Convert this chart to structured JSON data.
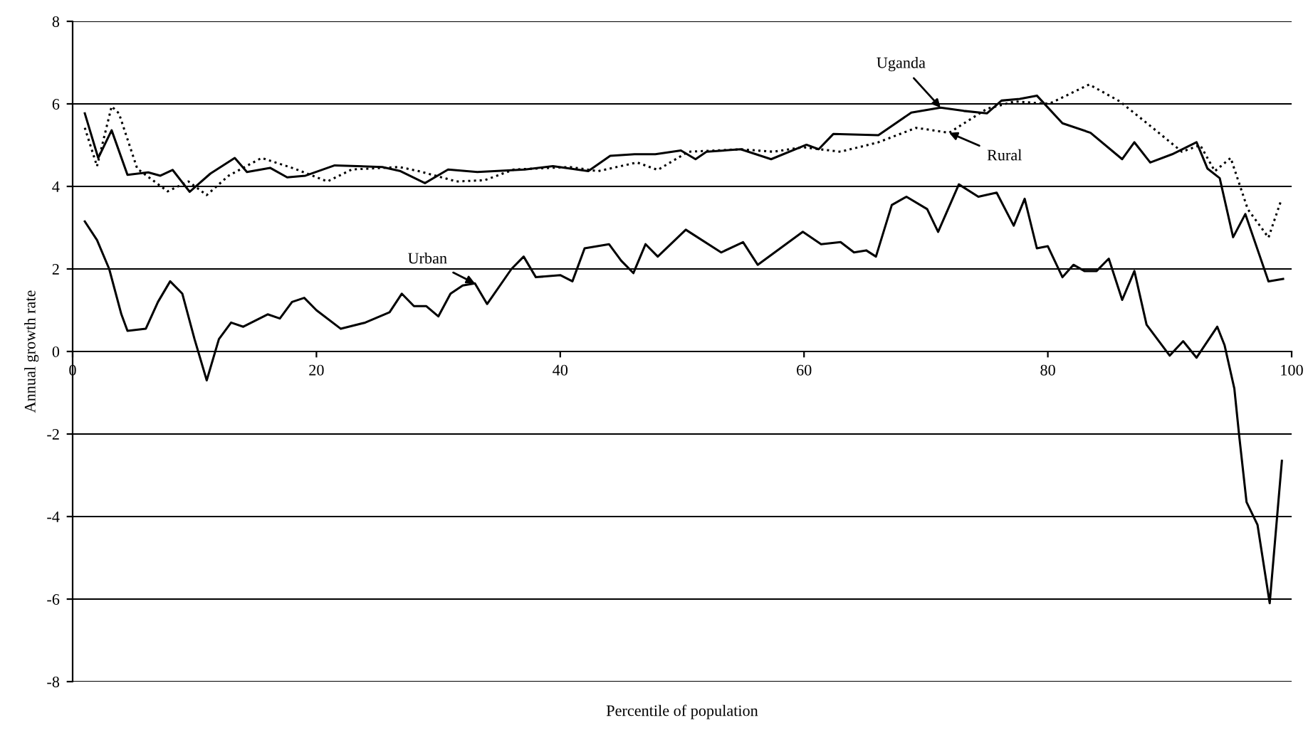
{
  "chart_data": {
    "type": "line",
    "xlabel": "Percentile of population",
    "ylabel": "Annual growth rate",
    "xlim": [
      0,
      100
    ],
    "ylim": [
      -8,
      8
    ],
    "xticks": [
      0,
      20,
      40,
      60,
      80,
      100
    ],
    "yticks": [
      -8,
      -6,
      -4,
      -2,
      0,
      2,
      4,
      6,
      8
    ],
    "grid": "y",
    "legend": false,
    "series": [
      {
        "name": "Uganda",
        "color": "#000000",
        "line_style": "solid",
        "x": [
          1,
          2.1,
          3.2,
          4.5,
          6.2,
          7.2,
          8.2,
          9.6,
          11.3,
          13.3,
          14.3,
          16.2,
          17.6,
          19.1,
          21.5,
          25.4,
          26.9,
          28.9,
          30.8,
          33.2,
          37.1,
          39.4,
          42.3,
          44.1,
          46.1,
          47.8,
          49.9,
          51.1,
          52,
          54.8,
          57.3,
          60.2,
          61.2,
          62.4,
          66.1,
          68.8,
          71.2,
          73.1,
          75,
          76.2,
          77.7,
          79.1,
          81.2,
          83.5,
          86.1,
          87.1,
          88.4,
          90.2,
          92.2,
          93.1,
          94.1,
          95.2,
          96.2,
          98.1,
          99.3
        ],
        "values": [
          5.77,
          4.69,
          5.36,
          4.28,
          4.34,
          4.26,
          4.4,
          3.87,
          4.31,
          4.69,
          4.35,
          4.45,
          4.22,
          4.26,
          4.51,
          4.47,
          4.37,
          4.08,
          4.41,
          4.35,
          4.41,
          4.49,
          4.37,
          4.74,
          4.78,
          4.78,
          4.87,
          4.66,
          4.84,
          4.9,
          4.66,
          5.01,
          4.9,
          5.27,
          5.24,
          5.79,
          5.91,
          5.83,
          5.77,
          6.08,
          6.12,
          6.2,
          5.53,
          5.3,
          4.66,
          5.07,
          4.58,
          4.78,
          5.07,
          4.43,
          4.2,
          2.77,
          3.33,
          1.7,
          1.76
        ]
      },
      {
        "name": "Rural",
        "color": "#000000",
        "line_style": "dotted",
        "x": [
          1,
          2,
          3.2,
          3.8,
          5.3,
          7.8,
          9.5,
          11,
          12.8,
          15.5,
          18.2,
          20.9,
          22.9,
          26.8,
          28.4,
          31.5,
          33.8,
          36.2,
          40.8,
          43.1,
          46.3,
          48,
          50.5,
          54.8,
          57.5,
          59.9,
          63,
          66.1,
          69.2,
          71.9,
          75,
          77.3,
          80.1,
          83.4,
          85.9,
          88.6,
          91,
          92.5,
          93.7,
          95,
          96.4,
          98.1,
          99.1
        ],
        "values": [
          5.42,
          4.49,
          5.94,
          5.77,
          4.43,
          3.88,
          4.12,
          3.79,
          4.26,
          4.69,
          4.43,
          4.12,
          4.41,
          4.47,
          4.37,
          4.12,
          4.15,
          4.41,
          4.47,
          4.37,
          4.58,
          4.4,
          4.84,
          4.9,
          4.84,
          4.95,
          4.84,
          5.07,
          5.42,
          5.3,
          5.88,
          6.06,
          6,
          6.47,
          6.06,
          5.42,
          4.84,
          5,
          4.37,
          4.69,
          3.45,
          2.76,
          3.63
        ]
      },
      {
        "name": "Urban",
        "color": "#000000",
        "line_style": "solid",
        "x": [
          1,
          2,
          3,
          4,
          4.5,
          6,
          7,
          8,
          9,
          10,
          11,
          12,
          13,
          14,
          16,
          17,
          18,
          19,
          20,
          22,
          24,
          26,
          27,
          28,
          29,
          30,
          31,
          32,
          33,
          34,
          36,
          37,
          38,
          40,
          41,
          42,
          44,
          45,
          46,
          47,
          48,
          50.3,
          53.2,
          55,
          56.2,
          59.9,
          61.4,
          63,
          64.1,
          65.1,
          65.9,
          67.2,
          68.4,
          70.1,
          71,
          72.7,
          74.3,
          75.8,
          77.2,
          78.1,
          79.1,
          80,
          81.2,
          82.1,
          83,
          84,
          85,
          86.1,
          87.1,
          88.1,
          90,
          91.1,
          92.2,
          93.9,
          94.5,
          95.3,
          95.7,
          96.3,
          97.2,
          98.2,
          99.2
        ],
        "values": [
          3.15,
          2.7,
          2.0,
          0.9,
          0.5,
          0.55,
          1.2,
          1.7,
          1.4,
          0.3,
          -0.7,
          0.3,
          0.7,
          0.6,
          0.9,
          0.8,
          1.2,
          1.3,
          1.0,
          0.55,
          0.7,
          0.95,
          1.4,
          1.1,
          1.1,
          0.85,
          1.4,
          1.6,
          1.65,
          1.15,
          2.0,
          2.3,
          1.8,
          1.85,
          1.7,
          2.5,
          2.6,
          2.2,
          1.9,
          2.6,
          2.3,
          2.95,
          2.4,
          2.65,
          2.1,
          2.9,
          2.6,
          2.65,
          2.4,
          2.45,
          2.3,
          3.55,
          3.75,
          3.45,
          2.9,
          4.05,
          3.75,
          3.85,
          3.05,
          3.7,
          2.5,
          2.55,
          1.8,
          2.1,
          1.95,
          1.95,
          2.25,
          1.25,
          1.95,
          0.65,
          -0.1,
          0.25,
          -0.15,
          0.6,
          0.15,
          -0.9,
          -2.05,
          -3.65,
          -4.2,
          -6.1,
          -2.65
        ]
      }
    ]
  }
}
